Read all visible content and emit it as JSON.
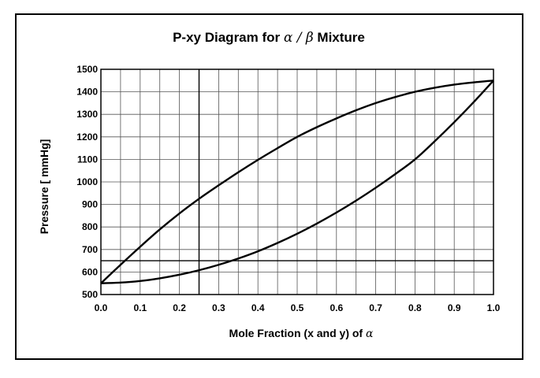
{
  "chart_data": {
    "type": "line",
    "title": {
      "prefix": "P-xy Diagram for ",
      "symbol": "α / β",
      "suffix": " Mixture"
    },
    "xlabel": {
      "prefix": "Mole Fraction (x and y) of ",
      "symbol": "α"
    },
    "ylabel": "Pressure [ mmHg]",
    "xlim": [
      0.0,
      1.0
    ],
    "ylim": [
      500,
      1500
    ],
    "xticks": [
      "0.0",
      "0.1",
      "0.2",
      "0.3",
      "0.4",
      "0.5",
      "0.6",
      "0.7",
      "0.8",
      "0.9",
      "1.0"
    ],
    "yticks": [
      "500",
      "600",
      "700",
      "800",
      "900",
      "1000",
      "1100",
      "1200",
      "1300",
      "1400",
      "1500"
    ],
    "grid": true,
    "minor_x_step": 0.05,
    "series": [
      {
        "x": [
          0.0,
          0.05,
          0.1,
          0.15,
          0.2,
          0.25,
          0.3,
          0.35,
          0.4,
          0.45,
          0.5,
          0.55,
          0.6,
          0.65,
          0.7,
          0.75,
          0.8,
          0.85,
          0.9,
          0.95,
          1.0
        ],
        "y": [
          550,
          632,
          712,
          789,
          860,
          925,
          985,
          1043,
          1098,
          1150,
          1200,
          1243,
          1282,
          1318,
          1350,
          1377,
          1400,
          1418,
          1432,
          1442,
          1450
        ]
      },
      {
        "x": [
          0.0,
          0.05,
          0.1,
          0.15,
          0.2,
          0.25,
          0.3,
          0.35,
          0.4,
          0.45,
          0.5,
          0.55,
          0.6,
          0.65,
          0.7,
          0.75,
          0.8,
          0.85,
          0.9,
          0.95,
          1.0
        ],
        "y": [
          550,
          553,
          560,
          572,
          588,
          608,
          632,
          660,
          692,
          729,
          770,
          815,
          864,
          917,
          974,
          1035,
          1100,
          1180,
          1265,
          1355,
          1450
        ]
      }
    ],
    "reference_lines": {
      "vertical_x": 0.25,
      "horizontal_y": 650
    }
  }
}
